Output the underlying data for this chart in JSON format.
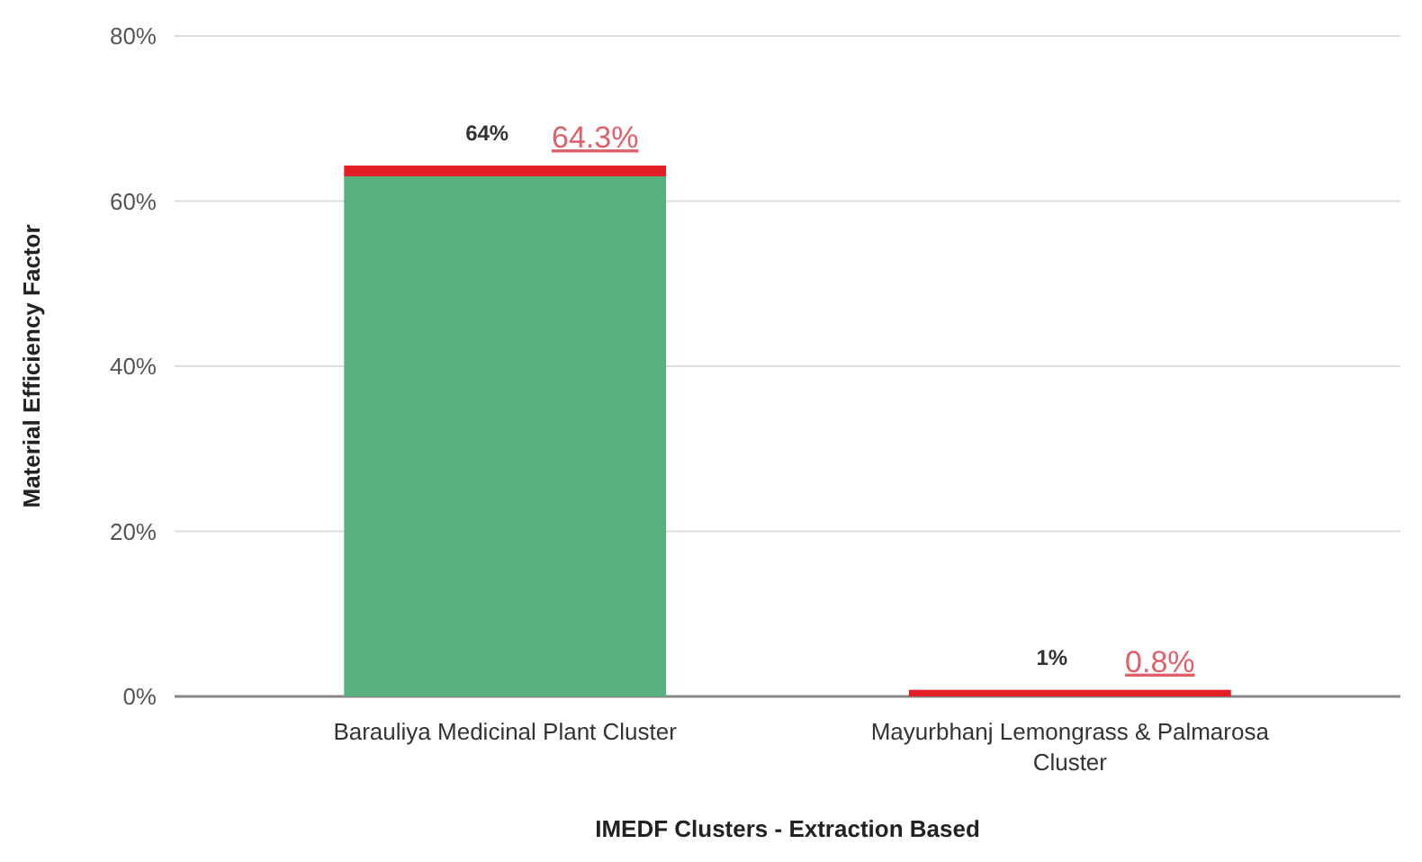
{
  "chart_data": {
    "type": "bar",
    "stacked": true,
    "xlabel": "IMEDF Clusters - Extraction Based",
    "ylabel": "Material Efficiency Factor",
    "categories": [
      "Barauliya Medicinal Plant Cluster",
      "Mayurbhanj Lemongrass & Palmarosa Cluster"
    ],
    "series": [
      {
        "color": "#57b07f",
        "values": [
          63,
          0
        ]
      },
      {
        "color": "#e31e26",
        "values": [
          1.3,
          0.8
        ]
      }
    ],
    "totals": [
      "64%",
      "1%"
    ],
    "annotations": [
      {
        "text": "64.3%",
        "x": "Barauliya Medicinal Plant Cluster",
        "y": 64.3
      },
      {
        "text": "0.8%",
        "x": "Mayurbhanj Lemongrass & Palmarosa Cluster",
        "y": 0.8
      }
    ],
    "ylim": [
      0,
      80
    ],
    "yticks": [
      {
        "value": 0,
        "label": "0%"
      },
      {
        "value": 20,
        "label": "20%"
      },
      {
        "value": 40,
        "label": "40%"
      },
      {
        "value": 60,
        "label": "60%"
      },
      {
        "value": 80,
        "label": "80%"
      }
    ],
    "grid": "y"
  }
}
